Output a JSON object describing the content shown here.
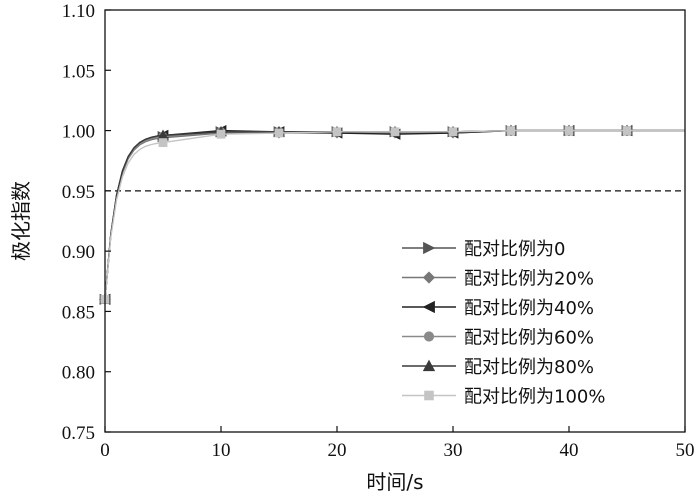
{
  "chart_data": {
    "type": "line",
    "xlabel": "时间/s",
    "ylabel": "极化指数",
    "xlim": [
      0,
      50
    ],
    "ylim": [
      0.75,
      1.1
    ],
    "x_ticks": [
      "0",
      "10",
      "20",
      "30",
      "40",
      "50"
    ],
    "y_ticks": [
      "0.75",
      "0.80",
      "0.85",
      "0.90",
      "0.95",
      "1.00",
      "1.05",
      "1.10"
    ],
    "grid": false,
    "legend_position": "bottom-right",
    "reference_line": {
      "y": 0.95,
      "style": "dashed"
    },
    "x": [
      0,
      5,
      10,
      15,
      20,
      25,
      30,
      35,
      40,
      45,
      50
    ],
    "series": [
      {
        "name": "配对比例为0",
        "marker": "triangle-right",
        "color": "#555555",
        "values": [
          0.86,
          0.995,
          0.999,
          0.999,
          0.999,
          0.999,
          0.999,
          1.0,
          1.0,
          1.0,
          1.0
        ]
      },
      {
        "name": "配对比例为20%",
        "marker": "diamond",
        "color": "#777777",
        "values": [
          0.86,
          0.994,
          0.998,
          0.998,
          0.998,
          0.998,
          0.998,
          1.0,
          1.0,
          1.0,
          1.0
        ]
      },
      {
        "name": "配对比例为40%",
        "marker": "triangle-left",
        "color": "#222222",
        "values": [
          0.86,
          0.996,
          1.0,
          0.999,
          0.998,
          0.997,
          0.998,
          1.0,
          1.0,
          1.0,
          1.0
        ]
      },
      {
        "name": "配对比例为60%",
        "marker": "circle",
        "color": "#8a8a8a",
        "values": [
          0.86,
          0.995,
          0.999,
          0.999,
          0.999,
          0.999,
          0.999,
          1.0,
          1.0,
          1.0,
          1.0
        ]
      },
      {
        "name": "配对比例为80%",
        "marker": "triangle-up",
        "color": "#3a3a3a",
        "values": [
          0.86,
          0.996,
          0.999,
          0.999,
          0.999,
          0.999,
          0.999,
          1.0,
          1.0,
          1.0,
          1.0
        ]
      },
      {
        "name": "配对比例为100%",
        "marker": "square",
        "color": "#c4c4c4",
        "values": [
          0.86,
          0.99,
          0.997,
          0.998,
          0.999,
          0.999,
          0.999,
          1.0,
          1.0,
          1.0,
          1.0
        ]
      }
    ]
  }
}
